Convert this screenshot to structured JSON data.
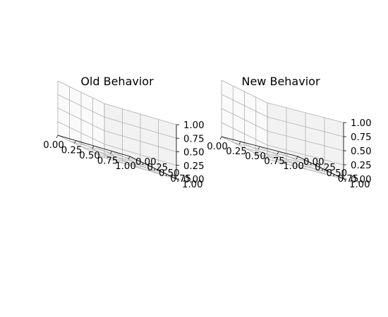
{
  "chart_data": [
    {
      "type": "surface3d",
      "title": "Old Behavior",
      "xlim": [
        0,
        1
      ],
      "ylim": [
        0,
        1
      ],
      "zlim": [
        0,
        1
      ],
      "x_ticks": [
        "0.00",
        "0.25",
        "0.50",
        "0.75",
        "1.00"
      ],
      "y_ticks": [
        "0.00",
        "0.25",
        "0.50",
        "0.75",
        "1.00"
      ],
      "z_ticks": [
        "0.00",
        "0.25",
        "0.50",
        "0.75",
        "1.00"
      ],
      "grid": true,
      "series": []
    },
    {
      "type": "surface3d",
      "title": "New Behavior",
      "xlim": [
        0,
        1
      ],
      "ylim": [
        0,
        1
      ],
      "zlim": [
        0,
        1
      ],
      "x_ticks": [
        "0.00",
        "0.25",
        "0.50",
        "0.75",
        "1.00"
      ],
      "y_ticks": [
        "0.00",
        "0.25",
        "0.50",
        "0.75",
        "1.00"
      ],
      "z_ticks": [
        "0.00",
        "0.25",
        "0.50",
        "0.75",
        "1.00"
      ],
      "grid": true,
      "series": []
    }
  ]
}
